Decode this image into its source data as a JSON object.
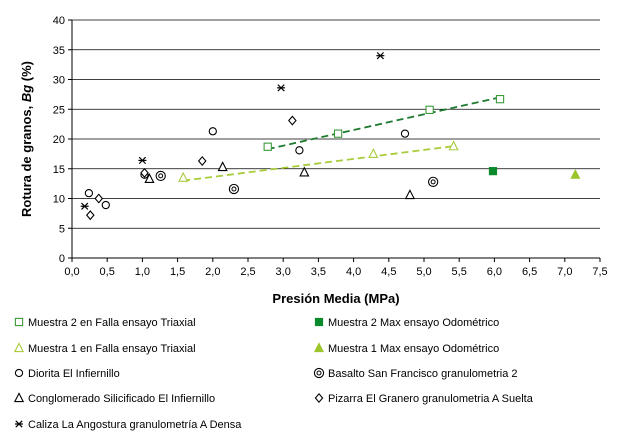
{
  "chart_data": {
    "type": "scatter",
    "xlabel": "Presión Media (MPa)",
    "ylabel_prefix": "Rotura de granos, ",
    "ylabel_var": "Bg",
    "ylabel_suffix": " (%)",
    "xlim": [
      0,
      7.5
    ],
    "ylim": [
      0,
      40
    ],
    "xticks": [
      "0,0",
      "0,5",
      "1,0",
      "1,5",
      "2,0",
      "2,5",
      "3,0",
      "3,5",
      "4,0",
      "4,5",
      "5,0",
      "5,5",
      "6,0",
      "6,5",
      "7,0",
      "7,5"
    ],
    "yticks": [
      "0",
      "5",
      "10",
      "15",
      "20",
      "25",
      "30",
      "35",
      "40"
    ],
    "grid": "horizontal",
    "legend_placement": "bottom",
    "series": [
      {
        "name": "Muestra 2 en Falla ensayo Triaxial",
        "marker": "square-open",
        "color": "#3a9a3a",
        "points": [
          [
            2.78,
            18.7
          ],
          [
            3.78,
            20.9
          ],
          [
            5.08,
            24.9
          ],
          [
            6.08,
            26.7
          ]
        ]
      },
      {
        "name": "Muestra 2 Max ensayo Odométrico",
        "marker": "square-filled",
        "color": "#0a8a2a",
        "points": [
          [
            5.98,
            14.6
          ]
        ]
      },
      {
        "name": "Muestra 1 en Falla ensayo Triaxial",
        "marker": "triangle-open",
        "color": "#a8cc3a",
        "points": [
          [
            1.58,
            13.5
          ],
          [
            4.28,
            17.5
          ],
          [
            5.42,
            18.8
          ]
        ]
      },
      {
        "name": "Muestra 1 Max ensayo Odométrico",
        "marker": "triangle-filled",
        "color": "#9cc52a",
        "points": [
          [
            7.15,
            14.0
          ]
        ]
      },
      {
        "name": "Diorita El Infiernillo",
        "marker": "circle-open",
        "color": "#000000",
        "points": [
          [
            0.24,
            10.9
          ],
          [
            0.48,
            8.9
          ],
          [
            1.03,
            14.0
          ],
          [
            2.0,
            21.3
          ],
          [
            3.23,
            18.1
          ],
          [
            4.73,
            20.9
          ]
        ]
      },
      {
        "name": "Basalto San Francisco granulometria 2",
        "marker": "circle-double",
        "color": "#000000",
        "points": [
          [
            1.26,
            13.8
          ],
          [
            2.3,
            11.6
          ],
          [
            5.13,
            12.8
          ]
        ]
      },
      {
        "name": "Conglomerado Silicificado El Infiernillo",
        "marker": "triangle-open",
        "color": "#000000",
        "points": [
          [
            1.1,
            13.3
          ],
          [
            2.14,
            15.3
          ],
          [
            3.3,
            14.4
          ],
          [
            4.8,
            10.6
          ]
        ]
      },
      {
        "name": "Pizarra El Granero granulometria A Suelta",
        "marker": "diamond-open",
        "color": "#000000",
        "points": [
          [
            0.26,
            7.2
          ],
          [
            0.38,
            10.0
          ],
          [
            1.03,
            14.3
          ],
          [
            1.85,
            16.3
          ],
          [
            3.13,
            23.1
          ]
        ]
      },
      {
        "name": "Caliza La Angostura granulometría A Densa",
        "marker": "star",
        "color": "#000000",
        "points": [
          [
            0.18,
            8.7
          ],
          [
            1.0,
            16.4
          ],
          [
            2.97,
            28.6
          ],
          [
            4.38,
            34.0
          ]
        ]
      }
    ],
    "trendlines": [
      {
        "color": "#1e7a2e",
        "from": [
          2.78,
          18.3
        ],
        "to": [
          6.08,
          27.0
        ]
      },
      {
        "color": "#a8cc3a",
        "from": [
          1.58,
          13.0
        ],
        "to": [
          5.42,
          18.8
        ]
      }
    ]
  }
}
